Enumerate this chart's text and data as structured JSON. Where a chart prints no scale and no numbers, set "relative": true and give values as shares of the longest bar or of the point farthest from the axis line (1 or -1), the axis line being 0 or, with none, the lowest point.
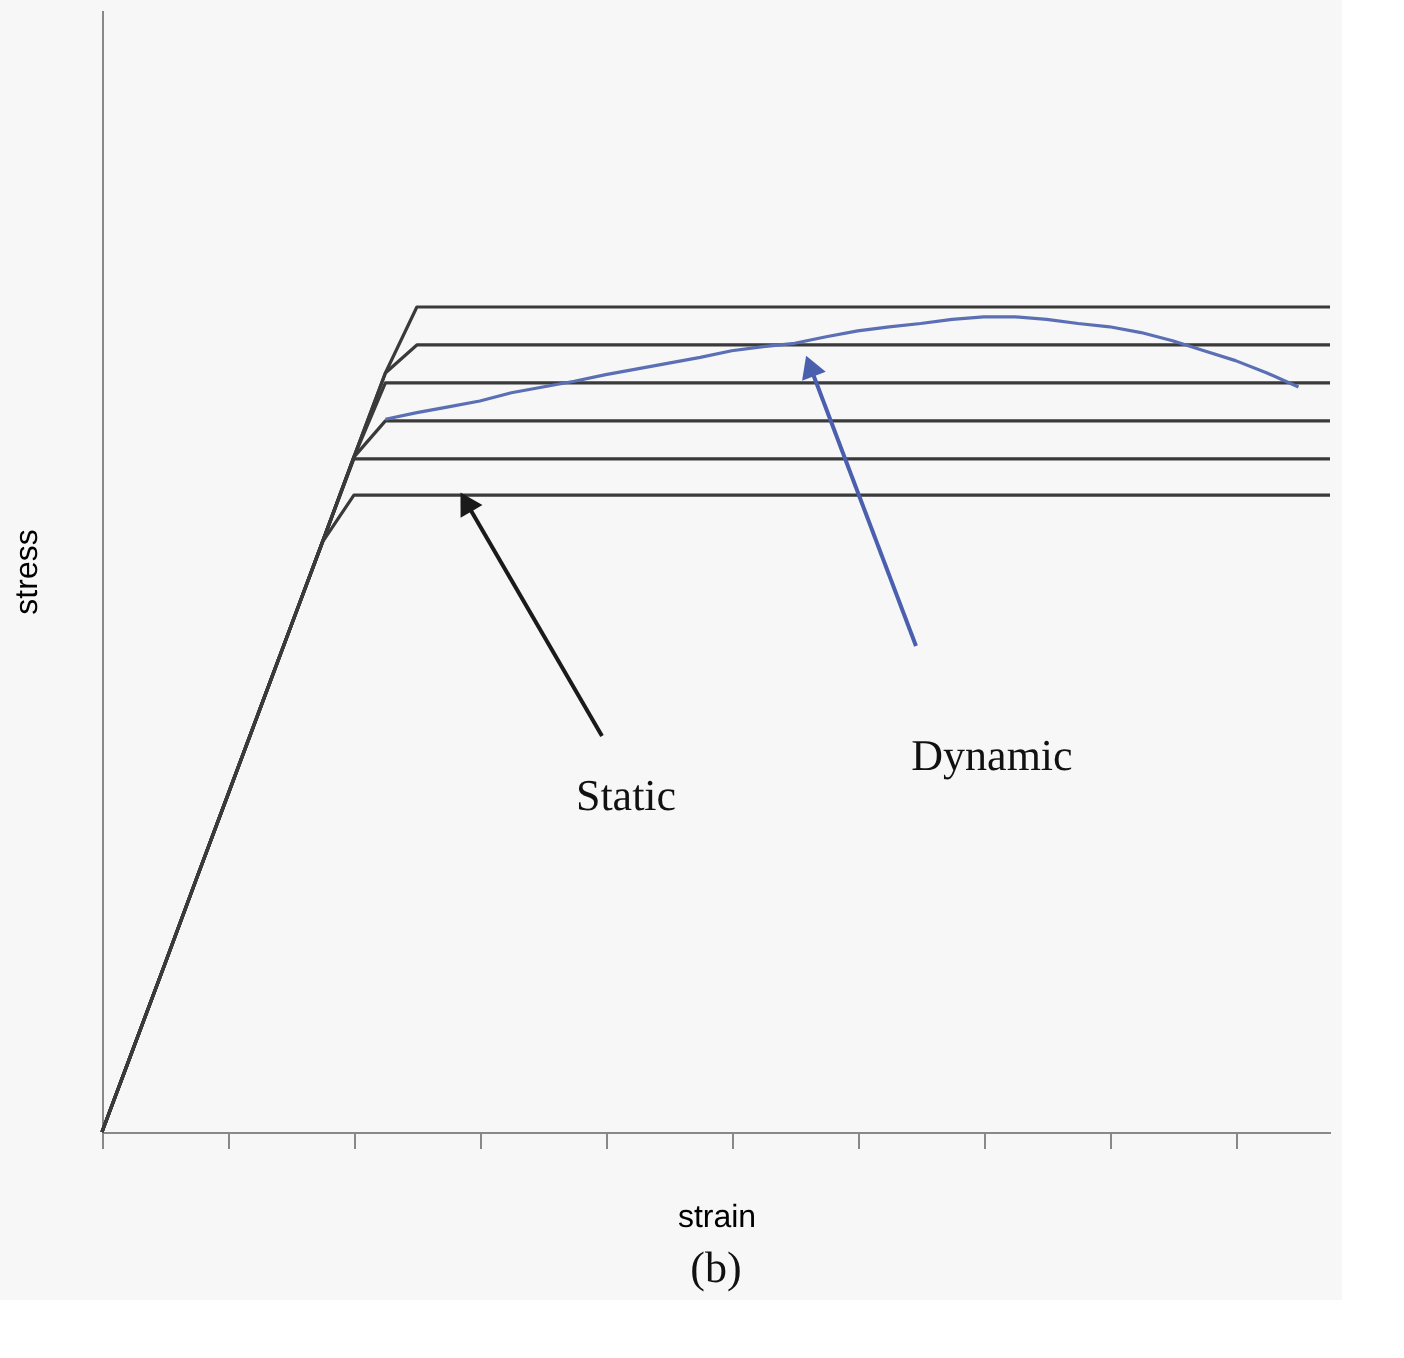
{
  "chart_data": {
    "type": "line",
    "relative": true,
    "xlabel": "strain",
    "ylabel": "stress",
    "grid": false,
    "line_style": "solid",
    "categories": [
      null,
      null,
      null,
      null,
      null,
      null,
      null,
      null,
      null,
      null,
      null,
      null,
      null,
      null,
      null,
      null,
      null,
      null,
      null,
      null,
      null,
      null,
      null,
      null,
      null,
      null,
      null,
      null,
      null,
      null,
      null,
      null,
      null,
      null,
      null,
      null,
      null,
      null,
      null,
      null
    ],
    "series": [
      {
        "color": "#3a3a3a",
        "values": [
          0,
          0.102,
          0.204,
          0.307,
          0.409,
          0.511,
          0.613,
          0.715,
          0.818,
          0.92,
          1.0,
          1.0,
          1.0,
          1.0,
          1.0,
          1.0,
          1.0,
          1.0,
          1.0,
          1.0,
          1.0,
          1.0,
          1.0,
          1.0,
          1.0,
          1.0,
          1.0,
          1.0,
          1.0,
          1.0,
          1.0,
          1.0,
          1.0,
          1.0,
          1.0,
          1.0,
          1.0,
          1.0,
          1.0,
          1.0
        ]
      },
      {
        "color": "#3a3a3a",
        "values": [
          0,
          0.102,
          0.204,
          0.307,
          0.409,
          0.511,
          0.613,
          0.715,
          0.818,
          0.92,
          0.954,
          0.954,
          0.954,
          0.954,
          0.954,
          0.954,
          0.954,
          0.954,
          0.954,
          0.954,
          0.954,
          0.954,
          0.954,
          0.954,
          0.954,
          0.954,
          0.954,
          0.954,
          0.954,
          0.954,
          0.954,
          0.954,
          0.954,
          0.954,
          0.954,
          0.954,
          0.954,
          0.954,
          0.954,
          0.954
        ]
      },
      {
        "color": "#3a3a3a",
        "values": [
          0,
          0.102,
          0.204,
          0.307,
          0.409,
          0.511,
          0.613,
          0.715,
          0.818,
          0.908,
          0.908,
          0.908,
          0.908,
          0.908,
          0.908,
          0.908,
          0.908,
          0.908,
          0.908,
          0.908,
          0.908,
          0.908,
          0.908,
          0.908,
          0.908,
          0.908,
          0.908,
          0.908,
          0.908,
          0.908,
          0.908,
          0.908,
          0.908,
          0.908,
          0.908,
          0.908,
          0.908,
          0.908,
          0.908,
          0.908
        ]
      },
      {
        "color": "#3a3a3a",
        "values": [
          0,
          0.102,
          0.204,
          0.307,
          0.409,
          0.511,
          0.613,
          0.715,
          0.818,
          0.862,
          0.862,
          0.862,
          0.862,
          0.862,
          0.862,
          0.862,
          0.862,
          0.862,
          0.862,
          0.862,
          0.862,
          0.862,
          0.862,
          0.862,
          0.862,
          0.862,
          0.862,
          0.862,
          0.862,
          0.862,
          0.862,
          0.862,
          0.862,
          0.862,
          0.862,
          0.862,
          0.862,
          0.862,
          0.862,
          0.862
        ]
      },
      {
        "color": "#3a3a3a",
        "values": [
          0,
          0.102,
          0.204,
          0.307,
          0.409,
          0.511,
          0.613,
          0.715,
          0.816,
          0.816,
          0.816,
          0.816,
          0.816,
          0.816,
          0.816,
          0.816,
          0.816,
          0.816,
          0.816,
          0.816,
          0.816,
          0.816,
          0.816,
          0.816,
          0.816,
          0.816,
          0.816,
          0.816,
          0.816,
          0.816,
          0.816,
          0.816,
          0.816,
          0.816,
          0.816,
          0.816,
          0.816,
          0.816,
          0.816,
          0.816
        ]
      },
      {
        "color": "#3a3a3a",
        "values": [
          0,
          0.102,
          0.204,
          0.307,
          0.409,
          0.511,
          0.613,
          0.715,
          0.772,
          0.772,
          0.772,
          0.772,
          0.772,
          0.772,
          0.772,
          0.772,
          0.772,
          0.772,
          0.772,
          0.772,
          0.772,
          0.772,
          0.772,
          0.772,
          0.772,
          0.772,
          0.772,
          0.772,
          0.772,
          0.772,
          0.772,
          0.772,
          0.772,
          0.772,
          0.772,
          0.772,
          0.772,
          0.772,
          0.772,
          0.772
        ]
      },
      {
        "color": "#5b6fb4",
        "values": [
          null,
          null,
          null,
          null,
          null,
          null,
          null,
          null,
          null,
          0.864,
          0.872,
          0.879,
          0.886,
          0.896,
          0.903,
          0.91,
          0.918,
          0.925,
          0.932,
          0.939,
          0.947,
          0.952,
          0.956,
          0.964,
          0.971,
          0.976,
          0.98,
          0.985,
          0.988,
          0.988,
          0.985,
          0.98,
          0.976,
          0.969,
          0.959,
          0.947,
          0.935,
          0.92,
          0.903,
          null
        ]
      }
    ],
    "annotations": [
      "Static",
      "Dynamic",
      "(b)"
    ]
  }
}
